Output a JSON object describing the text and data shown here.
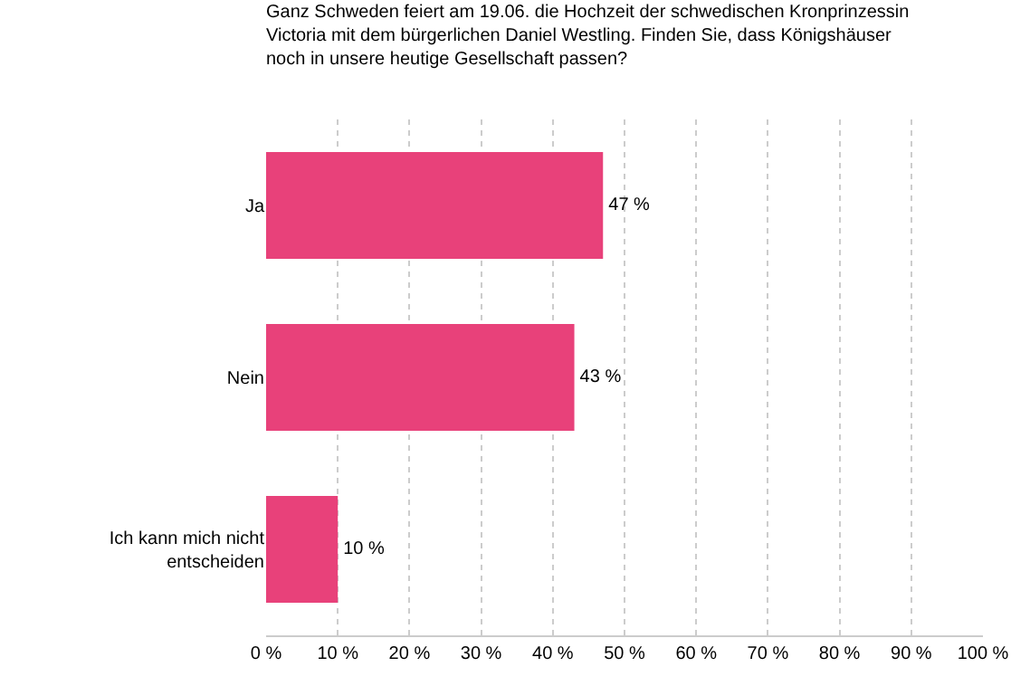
{
  "chart_data": {
    "type": "bar",
    "orientation": "horizontal",
    "title": "Ganz Schweden feiert am 19.06. die Hochzeit der schwedischen Kronprinzessin Victoria mit dem bürgerlichen Daniel Westling. Finden Sie, dass Königshäuser noch in unsere heutige Gesellschaft passen?",
    "categories": [
      "Ja",
      "Nein",
      "Ich kann mich nicht entscheiden"
    ],
    "values": [
      47,
      43,
      10
    ],
    "color": "#e8417a",
    "value_labels": [
      "47 %",
      "43 %",
      "10 %"
    ],
    "xlim": [
      0,
      100
    ],
    "xticks": [
      {
        "value": 0,
        "label": "0 %"
      },
      {
        "value": 10,
        "label": "10 %"
      },
      {
        "value": 20,
        "label": "20 %"
      },
      {
        "value": 30,
        "label": "30 %"
      },
      {
        "value": 40,
        "label": "40 %"
      },
      {
        "value": 50,
        "label": "50 %"
      },
      {
        "value": 60,
        "label": "60 %"
      },
      {
        "value": 70,
        "label": "70 %"
      },
      {
        "value": 80,
        "label": "80 %"
      },
      {
        "value": 90,
        "label": "90 %"
      },
      {
        "value": 100,
        "label": "100 %"
      }
    ],
    "grid": "x"
  }
}
